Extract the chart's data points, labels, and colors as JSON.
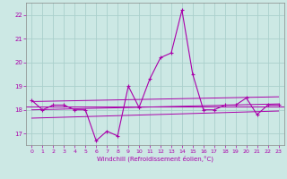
{
  "xlabel": "Windchill (Refroidissement éolien,°C)",
  "background_color": "#cce8e4",
  "grid_color": "#aacfcc",
  "line_color": "#aa00aa",
  "xlim_min": -0.5,
  "xlim_max": 23.5,
  "ylim_min": 16.5,
  "ylim_max": 22.5,
  "yticks": [
    17,
    18,
    19,
    20,
    21,
    22
  ],
  "xticks": [
    0,
    1,
    2,
    3,
    4,
    5,
    6,
    7,
    8,
    9,
    10,
    11,
    12,
    13,
    14,
    15,
    16,
    17,
    18,
    19,
    20,
    21,
    22,
    23
  ],
  "main_series": [
    18.4,
    18.0,
    18.2,
    18.2,
    18.0,
    18.0,
    16.7,
    17.1,
    16.9,
    19.0,
    18.1,
    19.3,
    20.2,
    20.4,
    22.2,
    19.5,
    18.0,
    18.0,
    18.2,
    18.2,
    18.5,
    17.8,
    18.2,
    18.2
  ],
  "horiz_line_y": 18.15,
  "reg_x0": 0,
  "reg_x1": 23,
  "reg_y0": 18.0,
  "reg_y1": 18.25,
  "upper_y0": 18.35,
  "upper_y1": 18.55,
  "lower_y0": 17.65,
  "lower_y1": 17.95
}
